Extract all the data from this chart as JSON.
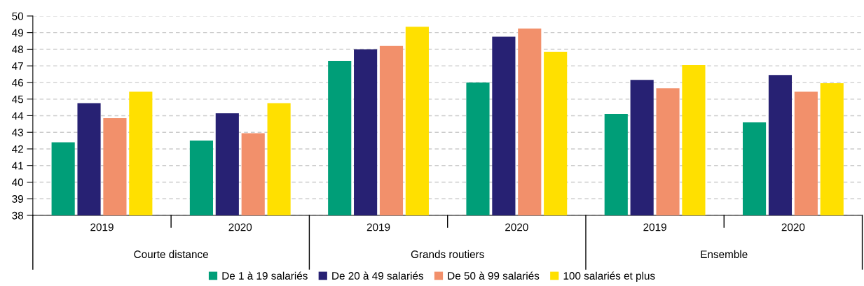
{
  "chart_data": {
    "type": "bar",
    "categories": [
      "2019",
      "2020",
      "2019",
      "2020",
      "2019",
      "2020"
    ],
    "annotations": [
      "Courte distance",
      "Grands routiers",
      "Ensemble"
    ],
    "series": [
      {
        "name": "De 1 à 19 salariés",
        "color": "#009e78",
        "values": [
          42.4,
          42.5,
          47.3,
          46.0,
          44.1,
          43.6
        ]
      },
      {
        "name": "De 20 à 49 salariés",
        "color": "#272173",
        "values": [
          44.75,
          44.15,
          48.0,
          48.75,
          46.15,
          46.45
        ]
      },
      {
        "name": "De 50 à 99 salariés",
        "color": "#f2906b",
        "values": [
          43.85,
          42.95,
          48.2,
          49.25,
          45.65,
          45.45
        ]
      },
      {
        "name": "100 salariés et plus",
        "color": "#ffe000",
        "values": [
          45.45,
          44.75,
          49.35,
          47.85,
          47.05,
          45.95
        ]
      }
    ],
    "ylim": [
      38,
      50
    ],
    "yticks": [
      38,
      39,
      40,
      41,
      42,
      43,
      44,
      45,
      46,
      47,
      48,
      49,
      50
    ],
    "grid": "y",
    "legend": "bottom"
  }
}
